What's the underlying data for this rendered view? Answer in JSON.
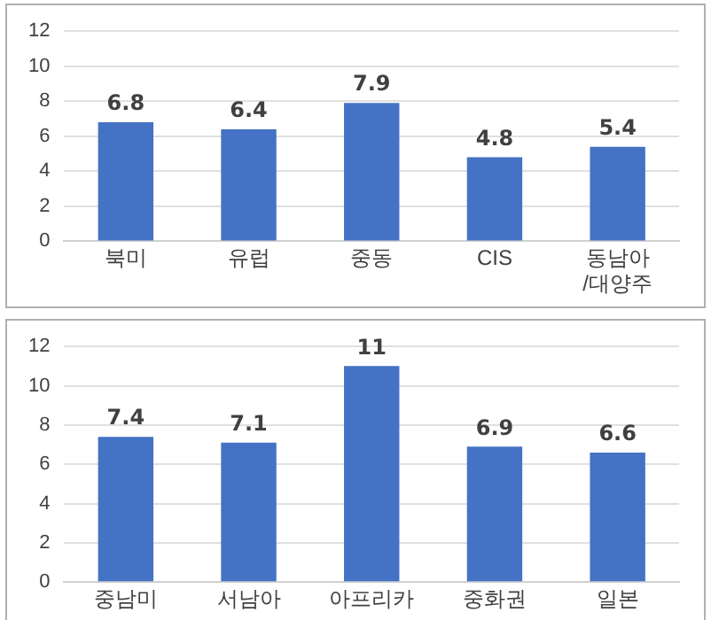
{
  "chart_data": [
    {
      "type": "bar",
      "categories": [
        "북미",
        "유럽",
        "중동",
        "CIS",
        "동남아\n/대양주"
      ],
      "values": [
        6.8,
        6.4,
        7.9,
        4.8,
        5.4
      ],
      "color": "#4472c4",
      "ylim": [
        0,
        12
      ],
      "yticks": [
        0,
        2,
        4,
        6,
        8,
        10,
        12
      ],
      "grid": "y",
      "data_labels": true
    },
    {
      "type": "bar",
      "categories": [
        "중남미",
        "서남아",
        "아프리카",
        "중화권",
        "일본"
      ],
      "values": [
        7.4,
        7.1,
        11,
        6.9,
        6.6
      ],
      "color": "#4472c4",
      "ylim": [
        0,
        12
      ],
      "yticks": [
        0,
        2,
        4,
        6,
        8,
        10,
        12
      ],
      "grid": "y",
      "data_labels": true
    }
  ]
}
